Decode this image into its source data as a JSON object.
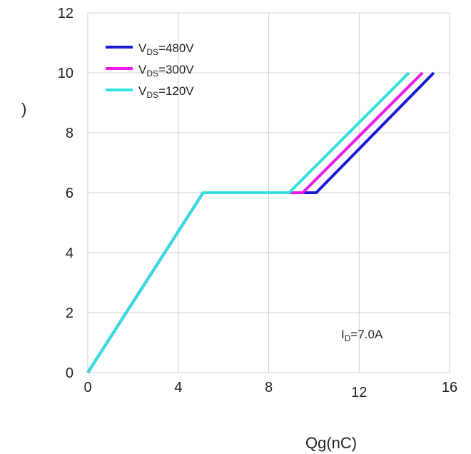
{
  "chart_data": {
    "type": "line",
    "title": "",
    "xlabel": "Qg(nC)",
    "ylabel": ")",
    "xlim": [
      0,
      16
    ],
    "ylim": [
      0,
      12
    ],
    "x_ticks": [
      0,
      4,
      8,
      12,
      16
    ],
    "y_ticks": [
      0,
      2,
      4,
      6,
      8,
      10,
      12
    ],
    "grid": true,
    "legend_position": "top-left",
    "annotation": {
      "main": "I",
      "sub": "D",
      "rest": "=7.0A"
    },
    "series": [
      {
        "name": "VDS=480V",
        "label_main": "V",
        "label_sub": "DS",
        "label_rest": "=480V",
        "color": "#1a1ad6",
        "x": [
          0,
          5.1,
          10.1,
          15.3
        ],
        "y": [
          0,
          6,
          6,
          10
        ]
      },
      {
        "name": "VDS=300V",
        "label_main": "V",
        "label_sub": "DS",
        "label_rest": "=300V",
        "color": "#e81ae8",
        "x": [
          0,
          5.1,
          9.5,
          14.8
        ],
        "y": [
          0,
          6,
          6,
          10
        ]
      },
      {
        "name": "VDS=120V",
        "label_main": "V",
        "label_sub": "DS",
        "label_rest": "=120V",
        "color": "#33e0e0",
        "x": [
          0,
          5.1,
          8.9,
          14.2
        ],
        "y": [
          0,
          6,
          6,
          10
        ]
      }
    ]
  }
}
